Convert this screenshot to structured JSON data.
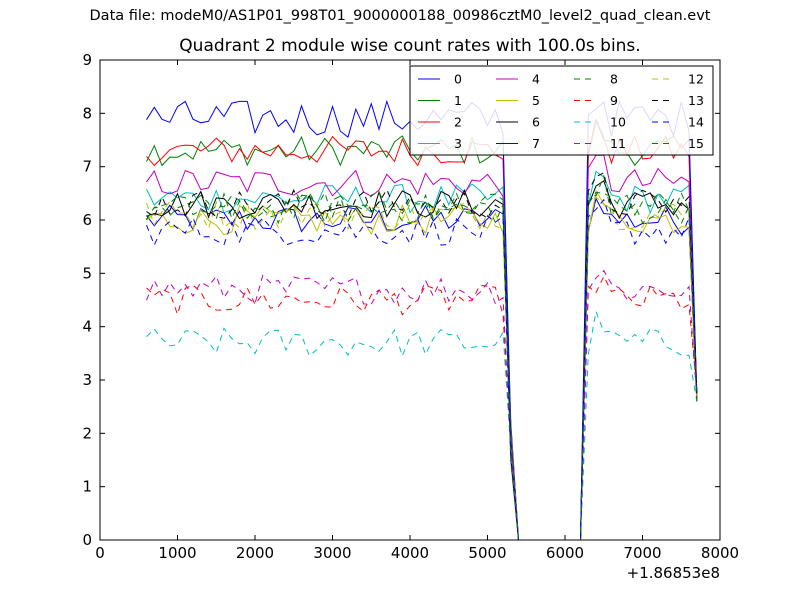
{
  "suptitle": "Data file: modeM0/AS1P01_998T01_9000000188_00986cztM0_level2_quad_clean.evt",
  "chart_data": {
    "type": "line",
    "title": "Quadrant 2 module wise count rates with 100.0s bins.",
    "xlabel": "",
    "ylabel": "",
    "x_offset_label": "+1.86853e8",
    "xlim": [
      0,
      8000
    ],
    "ylim": [
      0,
      9
    ],
    "x_ticks": [
      0,
      1000,
      2000,
      3000,
      4000,
      5000,
      6000,
      7000,
      8000
    ],
    "y_ticks": [
      0,
      1,
      2,
      3,
      4,
      5,
      6,
      7,
      8,
      9
    ],
    "grid": false,
    "legend_position": "top-right",
    "legend_columns": 4,
    "x_range": {
      "start": 600,
      "step": 100,
      "count": 72
    },
    "gap": {
      "last_before": 5200,
      "first_zero": 5400,
      "last_zero": 6200,
      "first_after": 6400
    },
    "series": [
      {
        "name": "0",
        "color": "#0000ff",
        "dash": "solid",
        "level": 6.0
      },
      {
        "name": "1",
        "color": "#008000",
        "dash": "solid",
        "level": 7.3
      },
      {
        "name": "2",
        "color": "#ff0000",
        "dash": "solid",
        "level": 7.3
      },
      {
        "name": "3",
        "color": "#00bfbf",
        "dash": "solid",
        "level": 6.4
      },
      {
        "name": "4",
        "color": "#bf00bf",
        "dash": "solid",
        "level": 6.7
      },
      {
        "name": "5",
        "color": "#bfbf00",
        "dash": "solid",
        "level": 6.0
      },
      {
        "name": "6",
        "color": "#000000",
        "dash": "solid",
        "level": 6.3
      },
      {
        "name": "7",
        "color": "#0000ff",
        "dash": "solid",
        "level": 7.9
      },
      {
        "name": "8",
        "color": "#008000",
        "dash": "dashed",
        "level": 6.3
      },
      {
        "name": "9",
        "color": "#ff0000",
        "dash": "dashed",
        "level": 4.5
      },
      {
        "name": "10",
        "color": "#00bfbf",
        "dash": "dashed",
        "level": 3.7
      },
      {
        "name": "11",
        "color": "#bf00bf",
        "dash": "dashed",
        "level": 4.7
      },
      {
        "name": "12",
        "color": "#bfbf00",
        "dash": "dashed",
        "level": 6.1
      },
      {
        "name": "13",
        "color": "#000000",
        "dash": "dashed",
        "level": 6.3
      },
      {
        "name": "14",
        "color": "#0000ff",
        "dash": "dashed",
        "level": 5.8
      },
      {
        "name": "15",
        "color": "#008000",
        "dash": "dashed",
        "level": 6.2
      }
    ]
  }
}
